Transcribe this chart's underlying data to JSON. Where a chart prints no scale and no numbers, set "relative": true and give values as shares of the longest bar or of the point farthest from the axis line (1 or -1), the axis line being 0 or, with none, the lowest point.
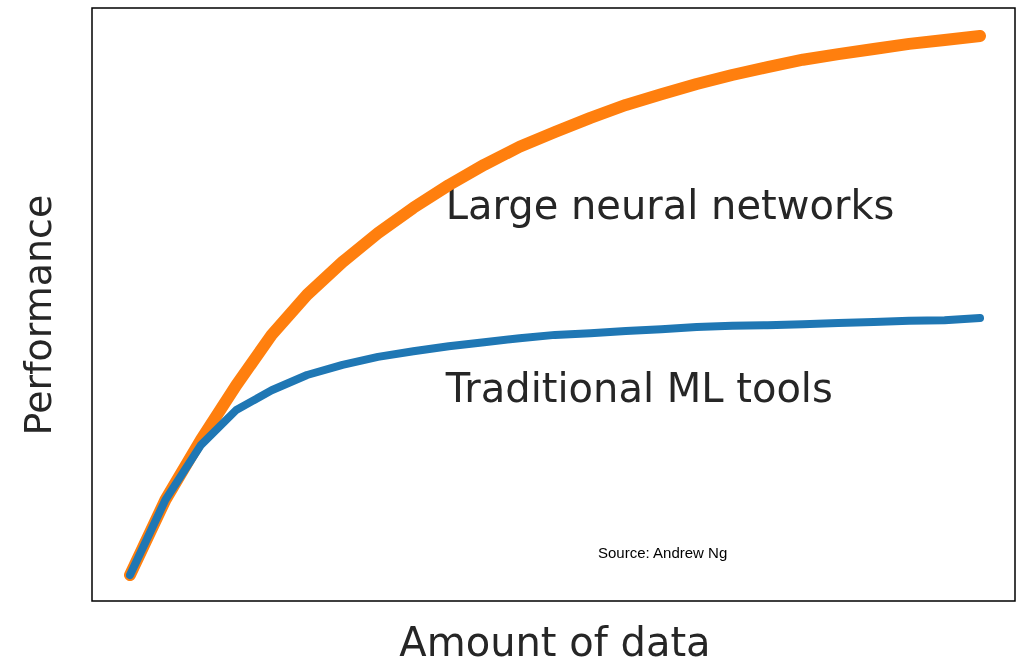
{
  "chart_data": {
    "type": "line",
    "relative": true,
    "xlabel": "Amount of data",
    "ylabel": "Performance",
    "tick_labels": false,
    "legend": false,
    "marker": "none",
    "line_style": "solid",
    "categories": [
      null,
      null,
      null,
      null,
      null,
      null,
      null,
      null,
      null,
      null,
      null,
      null,
      null,
      null,
      null,
      null,
      null,
      null,
      null,
      null,
      null,
      null,
      null,
      null,
      null
    ],
    "series": [
      {
        "name": "Large neural networks",
        "color": "#ff7f0e",
        "values": [
          0.046,
          0.179,
          0.285,
          0.382,
          0.471,
          0.542,
          0.6,
          0.651,
          0.696,
          0.736,
          0.772,
          0.804,
          0.83,
          0.855,
          0.878,
          0.897,
          0.915,
          0.931,
          0.945,
          0.958,
          0.968,
          0.977,
          0.986,
          0.993,
          1
        ]
      },
      {
        "name": "Traditional ML tools",
        "color": "#1f77b4",
        "values": [
          0.046,
          0.179,
          0.276,
          0.338,
          0.373,
          0.4,
          0.418,
          0.432,
          0.442,
          0.451,
          0.458,
          0.465,
          0.471,
          0.474,
          0.478,
          0.481,
          0.485,
          0.487,
          0.488,
          0.49,
          0.492,
          0.494,
          0.496,
          0.497,
          0.501
        ]
      }
    ],
    "annotations": [
      "Source: Andrew Ng"
    ]
  }
}
